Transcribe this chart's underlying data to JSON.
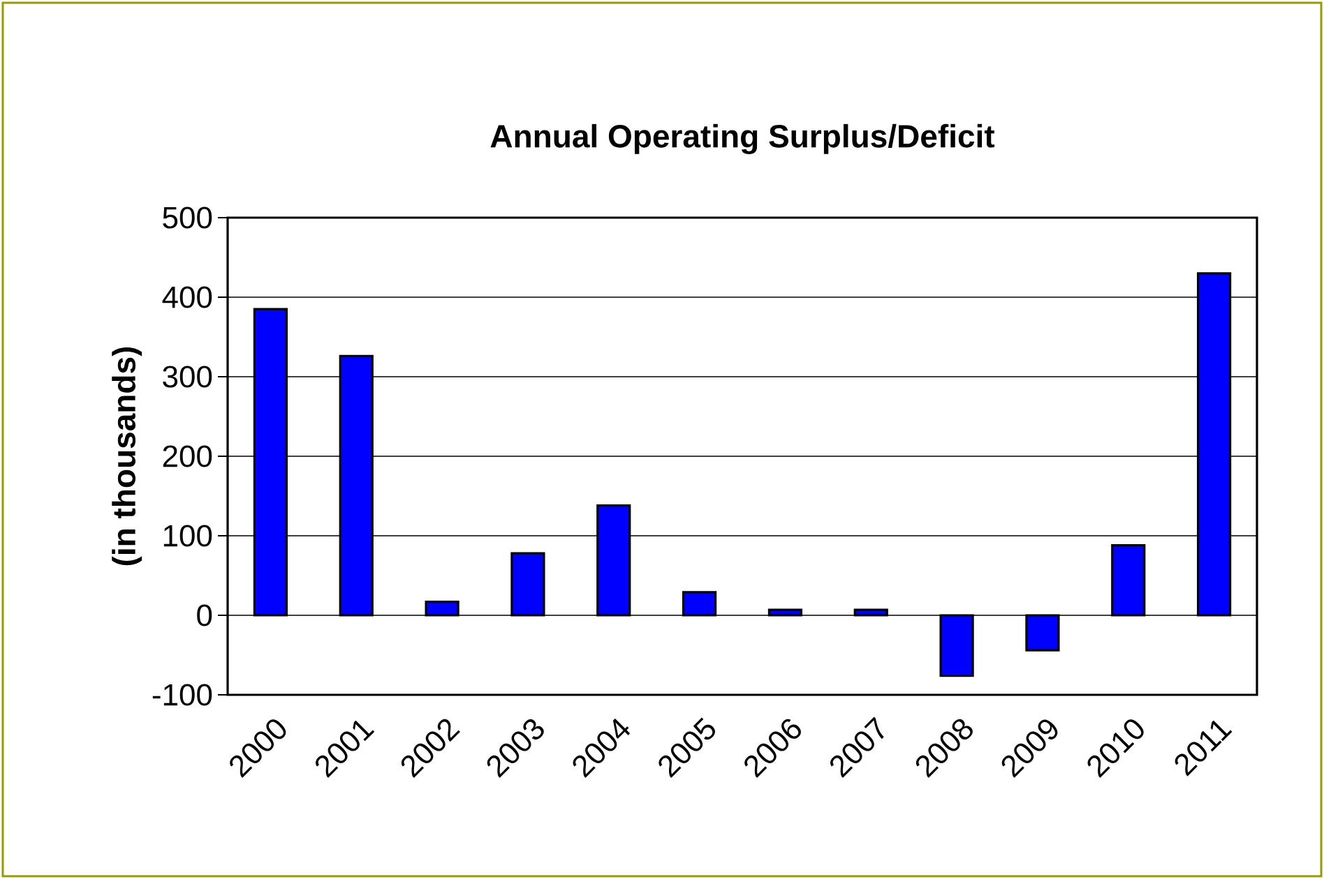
{
  "chart_data": {
    "type": "bar",
    "title": "Annual Operating Surplus/Deficit",
    "ylabel": "(in thousands)",
    "categories": [
      "2000",
      "2001",
      "2002",
      "2003",
      "2004",
      "2005",
      "2006",
      "2007",
      "2008",
      "2009",
      "2010",
      "2011"
    ],
    "values": [
      385,
      326,
      17,
      78,
      138,
      29,
      7,
      7,
      -76,
      -44,
      88,
      430
    ],
    "color": "#0000ff",
    "ylim": [
      -100,
      500
    ],
    "yticks": [
      -100,
      0,
      100,
      200,
      300,
      400,
      500
    ],
    "grid": "y"
  }
}
